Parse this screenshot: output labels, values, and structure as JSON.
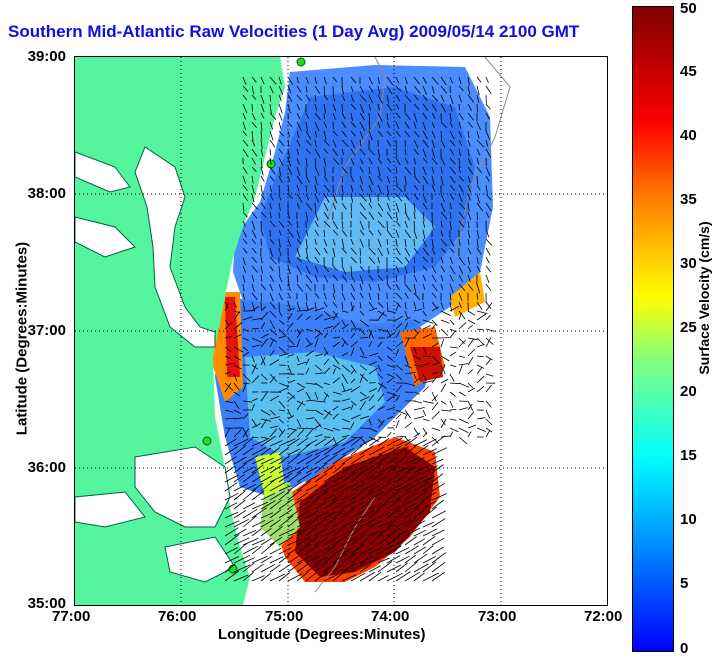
{
  "title": "Southern Mid-Atlantic Raw Velocities (1 Day Avg) 2009/05/14 2100 GMT",
  "xlabel": "Longitude (Degrees:Minutes)",
  "ylabel": "Latitude (Degrees:Minutes)",
  "x_ticks": [
    "77:00",
    "76:00",
    "75:00",
    "74:00",
    "73:00",
    "72:00"
  ],
  "y_ticks": [
    "39:00",
    "38:00",
    "37:00",
    "36:00",
    "35:00"
  ],
  "colorbar": {
    "label": "Surface Velocity (cm/s)",
    "ticks": [
      "50",
      "45",
      "40",
      "35",
      "30",
      "25",
      "20",
      "15",
      "10",
      "5",
      "0"
    ],
    "range": [
      0,
      50
    ]
  },
  "colors": {
    "land": "#55f5a0",
    "water": "#ffffff",
    "slow": "#2a6fff",
    "medium": "#58c8f0",
    "fast": "#8b0000",
    "title": "#1010dd"
  },
  "chart_data": {
    "type": "heatmap",
    "title": "Southern Mid-Atlantic Raw Velocities (1 Day Avg) 2009/05/14 2100 GMT",
    "xlabel": "Longitude (Degrees:Minutes)",
    "ylabel": "Latitude (Degrees:Minutes)",
    "xlim": [
      -77,
      -72
    ],
    "ylim": [
      35,
      39
    ],
    "grid": true,
    "colorbar_range": [
      0,
      50
    ],
    "colorbar_label": "Surface Velocity (cm/s)"
  }
}
